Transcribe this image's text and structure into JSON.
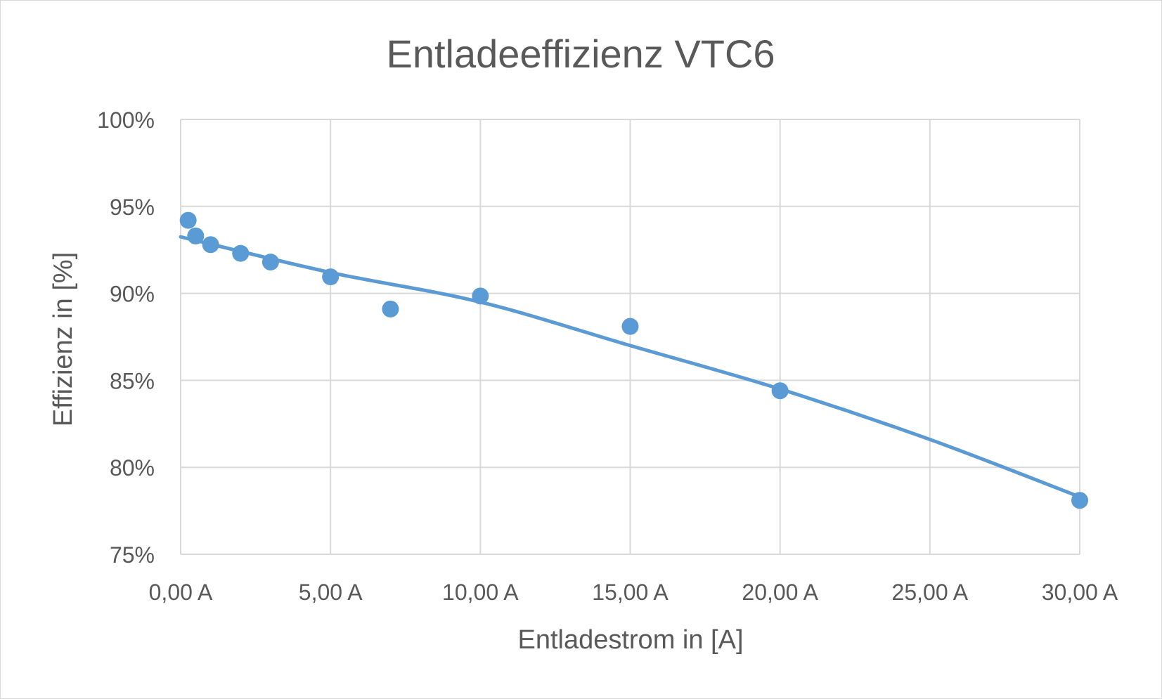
{
  "chart_data": {
    "type": "scatter",
    "title": "Entladeeffizienz VTC6",
    "xlabel": "Entladestrom in [A]",
    "ylabel": "Effizienz in [%]",
    "xlim": [
      0,
      30
    ],
    "ylim": [
      75,
      100
    ],
    "x_ticks": [
      0,
      5,
      10,
      15,
      20,
      25,
      30
    ],
    "y_ticks": [
      75,
      80,
      85,
      90,
      95,
      100
    ],
    "x_tick_labels": [
      "0,00 A",
      "5,00 A",
      "10,00 A",
      "15,00 A",
      "20,00 A",
      "25,00 A",
      "30,00 A"
    ],
    "y_tick_labels": [
      "75%",
      "80%",
      "85%",
      "90%",
      "95%",
      "100%"
    ],
    "grid": true,
    "series": [
      {
        "type": "scatter",
        "color": "#5b9bd5",
        "points": [
          {
            "x": 0.25,
            "y": 94.2
          },
          {
            "x": 0.5,
            "y": 93.3
          },
          {
            "x": 1.0,
            "y": 92.8
          },
          {
            "x": 2.0,
            "y": 92.3
          },
          {
            "x": 3.0,
            "y": 91.8
          },
          {
            "x": 5.0,
            "y": 90.95
          },
          {
            "x": 7.0,
            "y": 89.1
          },
          {
            "x": 10.0,
            "y": 89.85
          },
          {
            "x": 15.0,
            "y": 88.1
          },
          {
            "x": 20.0,
            "y": 84.4
          },
          {
            "x": 30.0,
            "y": 78.1
          }
        ]
      },
      {
        "type": "trendline",
        "color": "#5b9bd5",
        "points": [
          {
            "x": 0,
            "y": 93.25
          },
          {
            "x": 5,
            "y": 91.2
          },
          {
            "x": 10,
            "y": 89.5
          },
          {
            "x": 15,
            "y": 87.0
          },
          {
            "x": 20,
            "y": 84.5
          },
          {
            "x": 25,
            "y": 81.6
          },
          {
            "x": 30,
            "y": 78.3
          }
        ]
      }
    ],
    "grid_color": "#d9d9d9",
    "text_color": "#595959"
  }
}
